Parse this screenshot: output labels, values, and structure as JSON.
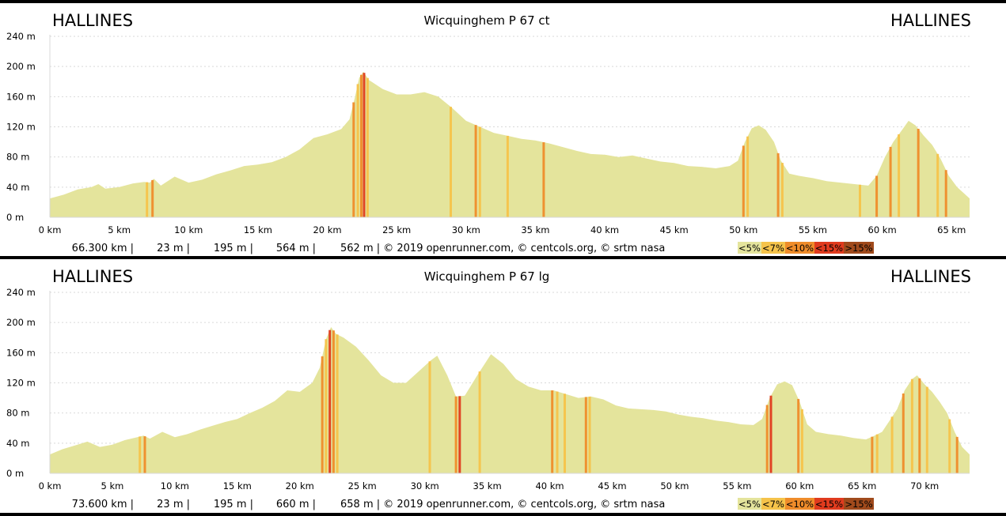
{
  "legend": [
    {
      "label": "<5%",
      "color": "#e4e49c"
    },
    {
      "label": "<7%",
      "color": "#f5c34a"
    },
    {
      "label": "<10%",
      "color": "#ef8c2a"
    },
    {
      "label": "<15%",
      "color": "#e03b1e"
    },
    {
      "label": ">15%",
      "color": "#a04a1c"
    }
  ],
  "chart_data": [
    {
      "type": "area",
      "title": "Wicquinghem P 67 ct",
      "start_label": "HALLINES",
      "end_label": "HALLINES",
      "xlim": [
        0,
        66.3
      ],
      "ylim": [
        0,
        240
      ],
      "x_unit": "km",
      "y_unit": "m",
      "x_ticks": [
        0,
        5,
        10,
        15,
        20,
        25,
        30,
        35,
        40,
        45,
        50,
        55,
        60,
        65
      ],
      "y_ticks": [
        0,
        40,
        80,
        120,
        160,
        200,
        240
      ],
      "x_tick_labels": [
        "0 km",
        "5 km",
        "10 km",
        "15 km",
        "20 km",
        "25 km",
        "30 km",
        "35 km",
        "40 km",
        "45 km",
        "50 km",
        "55 km",
        "60 km",
        "65 km"
      ],
      "y_tick_labels": [
        "0 m",
        "40 m",
        "80 m",
        "120 m",
        "160 m",
        "200 m",
        "240 m"
      ],
      "stats": [
        "66.300 km |",
        "23 m |",
        "195 m |",
        "564 m |",
        "562 m | © 2019 openrunner.com, © centcols.org, © srtm nasa"
      ],
      "profile": [
        [
          0,
          25
        ],
        [
          1,
          30
        ],
        [
          2,
          37
        ],
        [
          3,
          40
        ],
        [
          3.5,
          44
        ],
        [
          4,
          38
        ],
        [
          5,
          40
        ],
        [
          6,
          45
        ],
        [
          6.8,
          47
        ],
        [
          7.2,
          46
        ],
        [
          7.5,
          51
        ],
        [
          8,
          42
        ],
        [
          9,
          54
        ],
        [
          10,
          46
        ],
        [
          11,
          50
        ],
        [
          12,
          57
        ],
        [
          13,
          62
        ],
        [
          14,
          68
        ],
        [
          15,
          70
        ],
        [
          16,
          73
        ],
        [
          17,
          80
        ],
        [
          18,
          90
        ],
        [
          19,
          105
        ],
        [
          20,
          110
        ],
        [
          21,
          117
        ],
        [
          21.6,
          130
        ],
        [
          22.0,
          160
        ],
        [
          22.3,
          185
        ],
        [
          22.6,
          193
        ],
        [
          23,
          182
        ],
        [
          24,
          170
        ],
        [
          25,
          163
        ],
        [
          26,
          163
        ],
        [
          27,
          166
        ],
        [
          28,
          160
        ],
        [
          29,
          145
        ],
        [
          30,
          128
        ],
        [
          31,
          120
        ],
        [
          32,
          112
        ],
        [
          33,
          108
        ],
        [
          34,
          104
        ],
        [
          35,
          102
        ],
        [
          36,
          98
        ],
        [
          37,
          93
        ],
        [
          38,
          88
        ],
        [
          39,
          84
        ],
        [
          40,
          83
        ],
        [
          41,
          80
        ],
        [
          42,
          82
        ],
        [
          43,
          78
        ],
        [
          44,
          74
        ],
        [
          45,
          72
        ],
        [
          46,
          68
        ],
        [
          47,
          67
        ],
        [
          48,
          65
        ],
        [
          49,
          68
        ],
        [
          49.6,
          75
        ],
        [
          50.1,
          100
        ],
        [
          50.6,
          118
        ],
        [
          51.1,
          122
        ],
        [
          51.6,
          116
        ],
        [
          52.2,
          100
        ],
        [
          52.7,
          75
        ],
        [
          53.3,
          58
        ],
        [
          54,
          55
        ],
        [
          55,
          52
        ],
        [
          56,
          48
        ],
        [
          57,
          46
        ],
        [
          58,
          44
        ],
        [
          59,
          42
        ],
        [
          59.6,
          55
        ],
        [
          60.2,
          80
        ],
        [
          60.8,
          100
        ],
        [
          61.4,
          115
        ],
        [
          61.9,
          128
        ],
        [
          62.4,
          122
        ],
        [
          63,
          108
        ],
        [
          63.6,
          96
        ],
        [
          64.2,
          78
        ],
        [
          64.8,
          55
        ],
        [
          65.4,
          40
        ],
        [
          66.3,
          25
        ]
      ],
      "steep_km": [
        [
          7.0,
          "#f5c34a"
        ],
        [
          7.4,
          "#ef8c2a"
        ],
        [
          21.9,
          "#ef8c2a"
        ],
        [
          22.2,
          "#f5c34a"
        ],
        [
          22.45,
          "#ef8c2a"
        ],
        [
          22.65,
          "#e03b1e"
        ],
        [
          22.9,
          "#f5c34a"
        ],
        [
          28.9,
          "#f5c34a"
        ],
        [
          30.7,
          "#ef8c2a"
        ],
        [
          31.0,
          "#f5c34a"
        ],
        [
          33.0,
          "#f5c34a"
        ],
        [
          35.6,
          "#ef8c2a"
        ],
        [
          50.0,
          "#ef8c2a"
        ],
        [
          50.3,
          "#f5c34a"
        ],
        [
          52.5,
          "#ef8c2a"
        ],
        [
          52.8,
          "#f5c34a"
        ],
        [
          58.4,
          "#f5c34a"
        ],
        [
          59.6,
          "#ef8c2a"
        ],
        [
          60.6,
          "#ef8c2a"
        ],
        [
          61.2,
          "#f5c34a"
        ],
        [
          62.6,
          "#ef8c2a"
        ],
        [
          64.0,
          "#f5c34a"
        ],
        [
          64.6,
          "#ef8c2a"
        ]
      ]
    },
    {
      "type": "area",
      "title": "Wicquinghem P 67 lg",
      "start_label": "HALLINES",
      "end_label": "HALLINES",
      "xlim": [
        0,
        73.6
      ],
      "ylim": [
        0,
        240
      ],
      "x_unit": "km",
      "y_unit": "m",
      "x_ticks": [
        0,
        5,
        10,
        15,
        20,
        25,
        30,
        35,
        40,
        45,
        50,
        55,
        60,
        65,
        70
      ],
      "y_ticks": [
        0,
        40,
        80,
        120,
        160,
        200,
        240
      ],
      "x_tick_labels": [
        "0 km",
        "5 km",
        "10 km",
        "15 km",
        "20 km",
        "25 km",
        "30 km",
        "35 km",
        "40 km",
        "45 km",
        "50 km",
        "55 km",
        "60 km",
        "65 km",
        "70 km"
      ],
      "y_tick_labels": [
        "0 m",
        "40 m",
        "80 m",
        "120 m",
        "160 m",
        "200 m",
        "240 m"
      ],
      "stats": [
        "73.600 km |",
        "23 m |",
        "195 m |",
        "660 m |",
        "658 m | © 2019 openrunner.com, © centcols.org, © srtm nasa"
      ],
      "profile": [
        [
          0,
          25
        ],
        [
          1,
          32
        ],
        [
          2,
          37
        ],
        [
          3,
          42
        ],
        [
          4,
          35
        ],
        [
          5,
          38
        ],
        [
          6,
          44
        ],
        [
          7,
          48
        ],
        [
          7.5,
          50
        ],
        [
          8,
          46
        ],
        [
          9,
          55
        ],
        [
          10,
          48
        ],
        [
          11,
          52
        ],
        [
          12,
          58
        ],
        [
          13,
          63
        ],
        [
          14,
          68
        ],
        [
          15,
          72
        ],
        [
          16,
          80
        ],
        [
          17,
          87
        ],
        [
          18,
          96
        ],
        [
          19,
          110
        ],
        [
          20,
          108
        ],
        [
          21,
          120
        ],
        [
          21.6,
          140
        ],
        [
          22.1,
          178
        ],
        [
          22.5,
          194
        ],
        [
          22.9,
          185
        ],
        [
          23.5,
          180
        ],
        [
          24.5,
          168
        ],
        [
          25.5,
          150
        ],
        [
          26.5,
          130
        ],
        [
          27.5,
          120
        ],
        [
          28.5,
          120
        ],
        [
          29.5,
          135
        ],
        [
          30.5,
          150
        ],
        [
          31.0,
          156
        ],
        [
          31.8,
          130
        ],
        [
          32.5,
          102
        ],
        [
          33.2,
          103
        ],
        [
          34.2,
          130
        ],
        [
          35.3,
          158
        ],
        [
          36.3,
          145
        ],
        [
          37.3,
          125
        ],
        [
          38.3,
          115
        ],
        [
          39.3,
          110
        ],
        [
          40.3,
          110
        ],
        [
          41.3,
          105
        ],
        [
          42.3,
          100
        ],
        [
          43.3,
          102
        ],
        [
          44.3,
          98
        ],
        [
          45.3,
          90
        ],
        [
          46.3,
          86
        ],
        [
          47.3,
          85
        ],
        [
          48.3,
          84
        ],
        [
          49.3,
          82
        ],
        [
          50.3,
          78
        ],
        [
          51.3,
          75
        ],
        [
          52.3,
          73
        ],
        [
          53.3,
          70
        ],
        [
          54.3,
          68
        ],
        [
          55.3,
          65
        ],
        [
          56.3,
          64
        ],
        [
          57.0,
          72
        ],
        [
          57.6,
          100
        ],
        [
          58.2,
          118
        ],
        [
          58.8,
          122
        ],
        [
          59.4,
          117
        ],
        [
          60.0,
          95
        ],
        [
          60.6,
          65
        ],
        [
          61.3,
          55
        ],
        [
          62.3,
          52
        ],
        [
          63.3,
          50
        ],
        [
          64.3,
          47
        ],
        [
          65.3,
          45
        ],
        [
          66.0,
          50
        ],
        [
          66.6,
          55
        ],
        [
          67.2,
          70
        ],
        [
          67.8,
          85
        ],
        [
          68.4,
          110
        ],
        [
          69.0,
          125
        ],
        [
          69.4,
          130
        ],
        [
          70.0,
          118
        ],
        [
          70.6,
          108
        ],
        [
          71.2,
          95
        ],
        [
          71.8,
          80
        ],
        [
          72.4,
          55
        ],
        [
          73.0,
          35
        ],
        [
          73.6,
          25
        ]
      ],
      "steep_km": [
        [
          7.2,
          "#f5c34a"
        ],
        [
          7.6,
          "#ef8c2a"
        ],
        [
          21.8,
          "#ef8c2a"
        ],
        [
          22.1,
          "#f5c34a"
        ],
        [
          22.4,
          "#e03b1e"
        ],
        [
          22.7,
          "#ef8c2a"
        ],
        [
          23.0,
          "#f5c34a"
        ],
        [
          30.4,
          "#f5c34a"
        ],
        [
          32.5,
          "#ef8c2a"
        ],
        [
          32.8,
          "#e03b1e"
        ],
        [
          34.4,
          "#f5c34a"
        ],
        [
          40.2,
          "#ef8c2a"
        ],
        [
          40.6,
          "#f5c34a"
        ],
        [
          41.2,
          "#f5c34a"
        ],
        [
          42.9,
          "#ef8c2a"
        ],
        [
          43.2,
          "#f5c34a"
        ],
        [
          57.4,
          "#ef8c2a"
        ],
        [
          57.7,
          "#e03b1e"
        ],
        [
          59.9,
          "#ef8c2a"
        ],
        [
          60.2,
          "#f5c34a"
        ],
        [
          65.8,
          "#ef8c2a"
        ],
        [
          66.2,
          "#f5c34a"
        ],
        [
          67.4,
          "#f5c34a"
        ],
        [
          68.3,
          "#ef8c2a"
        ],
        [
          69.0,
          "#f5c34a"
        ],
        [
          69.6,
          "#ef8c2a"
        ],
        [
          70.2,
          "#f5c34a"
        ],
        [
          72.0,
          "#f5c34a"
        ],
        [
          72.6,
          "#ef8c2a"
        ]
      ]
    }
  ]
}
